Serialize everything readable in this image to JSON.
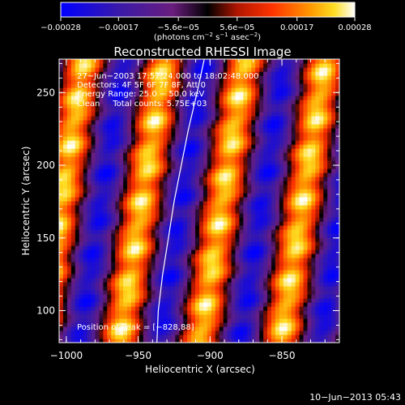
{
  "chart_data": {
    "type": "heatmap",
    "title": "Reconstructed RHESSI Image",
    "xlabel": "Heliocentric X (arcsec)",
    "ylabel": "Heliocentric Y (arcsec)",
    "xlim": [
      -1005,
      -810
    ],
    "ylim": [
      78,
      273
    ],
    "x_ticks": [
      {
        "value": -1000,
        "label": "−1000"
      },
      {
        "value": -950,
        "label": "−950"
      },
      {
        "value": -900,
        "label": "−900"
      },
      {
        "value": -850,
        "label": "−850"
      }
    ],
    "y_ticks": [
      {
        "value": 100,
        "label": "100"
      },
      {
        "value": 150,
        "label": "150"
      },
      {
        "value": 200,
        "label": "200"
      },
      {
        "value": 250,
        "label": "250"
      }
    ],
    "colorbar": {
      "min": -0.00028,
      "max": 0.00028,
      "ticks": [
        {
          "value": -0.00028,
          "label": "−0.00028"
        },
        {
          "value": -0.00017,
          "label": "−0.00017"
        },
        {
          "value": -5.6e-05,
          "label": "−5.6e−05"
        },
        {
          "value": 5.6e-05,
          "label": "5.6e−05"
        },
        {
          "value": 0.00017,
          "label": "0.00017"
        },
        {
          "value": 0.00028,
          "label": "0.00028"
        }
      ],
      "unit_main": "(photons cm",
      "unit_exp1": "−2",
      "unit_mid": " s",
      "unit_exp2": "−1",
      "unit_end": " asec",
      "unit_exp3": "−2",
      "unit_close": ")"
    },
    "annotations": {
      "line1": "27−Jun−2003 17:57:24.000 to 18:02:48.000",
      "line2": "Detectors: 4F 5F 6F 7F 8F, Att 0",
      "line3": "Energy Range: 25.0 − 50.0 keV",
      "line4": "Clean     Total counts: 5.75E+03",
      "peak": "Position of Peak = [−828,88]"
    },
    "limb_curve": [
      [
        -937,
        78
      ],
      [
        -936,
        100
      ],
      [
        -933,
        125
      ],
      [
        -929,
        150
      ],
      [
        -925,
        175
      ],
      [
        -920,
        200
      ],
      [
        -915,
        225
      ],
      [
        -909,
        250
      ],
      [
        -904,
        273
      ]
    ],
    "fringes": {
      "comment_free": true,
      "bright_centers_x_at_ymin": [
        -963,
        -905,
        -840
      ],
      "slope_dx_per_dy": 0.16,
      "period": 56,
      "amplitude": 0.00028
    },
    "footer_date": "10−Jun−2013 05:43"
  }
}
